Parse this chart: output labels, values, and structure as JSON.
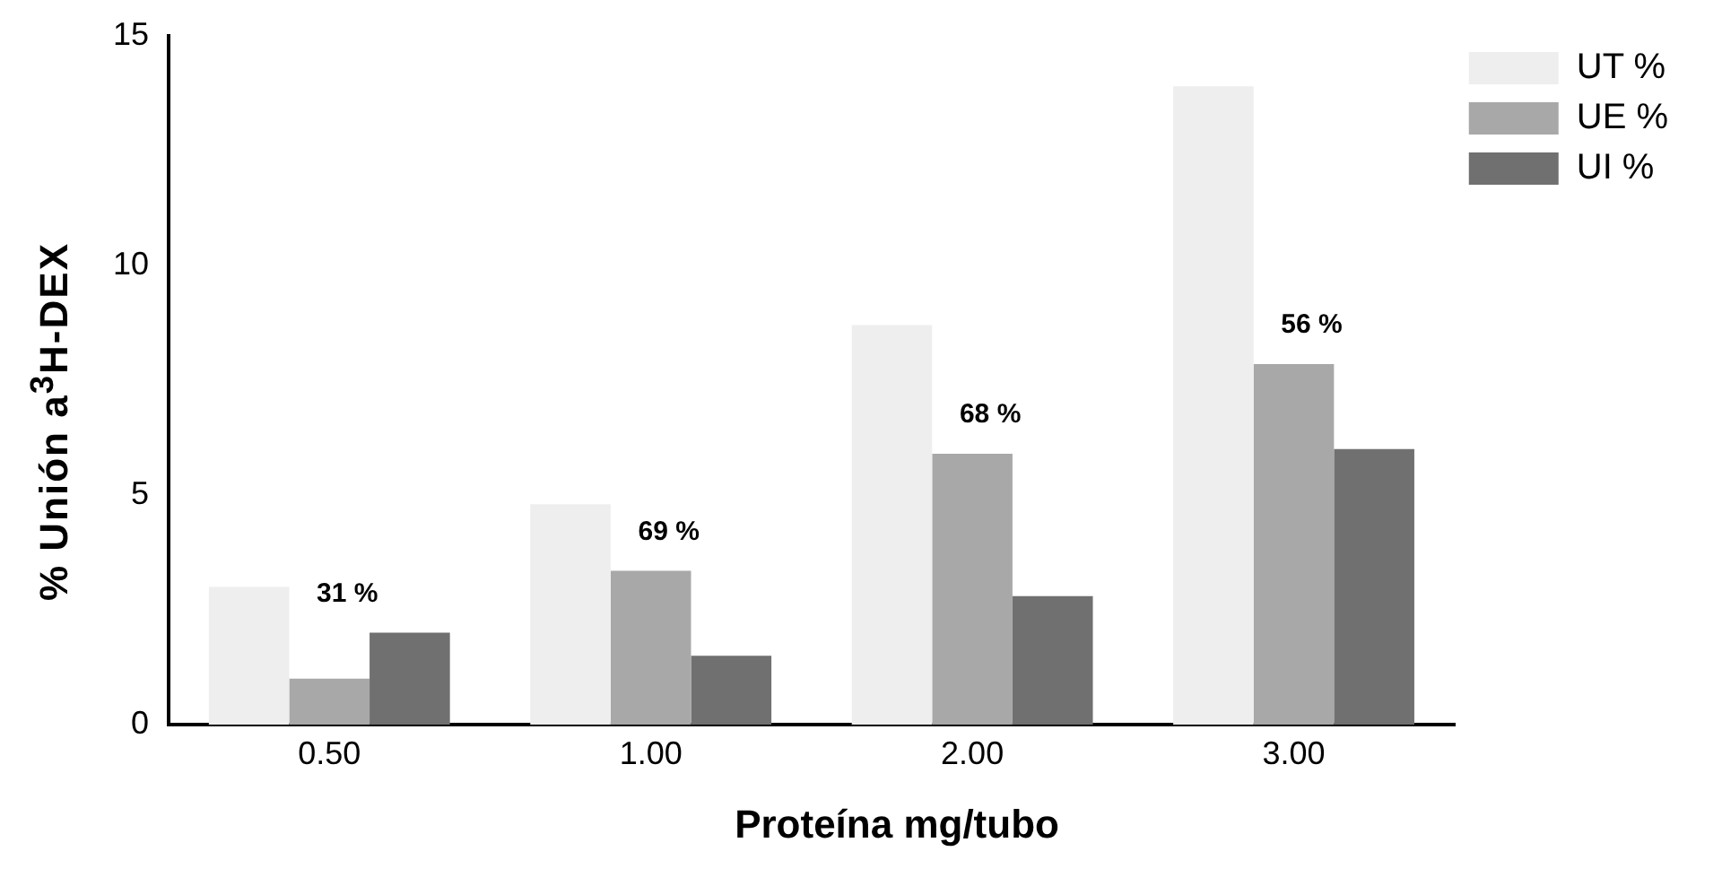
{
  "chart_data": {
    "type": "bar",
    "xlabel": "Proteína mg/tubo",
    "ylabel": "% Unión a$^{3}$H-DEX",
    "categories": [
      "0.50",
      "1.00",
      "2.00",
      "3.00"
    ],
    "series": [
      {
        "name": "UT %",
        "color": "#eeeeee",
        "values": [
          3.0,
          4.8,
          8.7,
          13.9
        ]
      },
      {
        "name": "UE %",
        "color": "#a8a8a8",
        "values": [
          1.0,
          3.35,
          5.9,
          7.85
        ]
      },
      {
        "name": "UI %",
        "color": "#707070",
        "values": [
          2.0,
          1.5,
          2.8,
          6.0
        ]
      }
    ],
    "ylim": [
      0,
      15
    ],
    "yticks": [
      0,
      5,
      10,
      15
    ],
    "grid": false,
    "legend": "top right",
    "annotations": [
      "31 %",
      "69 %",
      "68 %",
      "56 %"
    ]
  }
}
